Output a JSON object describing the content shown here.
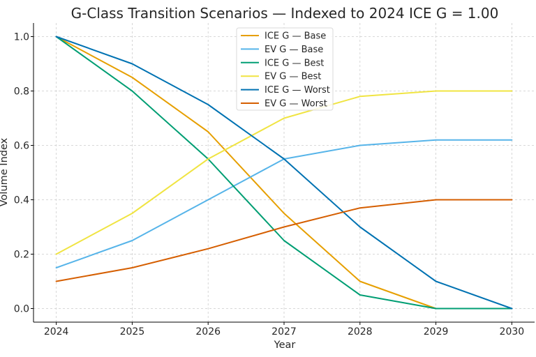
{
  "chart_data": {
    "type": "line",
    "title": "G-Class Transition Scenarios — Indexed to 2024 ICE G = 1.00",
    "xlabel": "Year",
    "ylabel": "Volume Index",
    "x": [
      2024,
      2025,
      2026,
      2027,
      2028,
      2029,
      2030
    ],
    "xlim": [
      2023.7,
      2030.3
    ],
    "ylim": [
      -0.05,
      1.05
    ],
    "yticks": [
      0.0,
      0.2,
      0.4,
      0.6,
      0.8,
      1.0
    ],
    "ytick_labels": [
      "0.0",
      "0.2",
      "0.4",
      "0.6",
      "0.8",
      "1.0"
    ],
    "xtick_labels": [
      "2024",
      "2025",
      "2026",
      "2027",
      "2028",
      "2029",
      "2030"
    ],
    "grid": true,
    "legend_position": "top-center",
    "series": [
      {
        "name": "ICE G — Base",
        "color": "#E69F00",
        "values": [
          1.0,
          0.85,
          0.65,
          0.35,
          0.1,
          0.0,
          0.0
        ]
      },
      {
        "name": "EV G — Base",
        "color": "#56B4E9",
        "values": [
          0.15,
          0.25,
          0.4,
          0.55,
          0.6,
          0.62,
          0.62
        ]
      },
      {
        "name": "ICE G — Best",
        "color": "#009E73",
        "values": [
          1.0,
          0.8,
          0.55,
          0.25,
          0.05,
          0.0,
          0.0
        ]
      },
      {
        "name": "EV G — Best",
        "color": "#F0E442",
        "values": [
          0.2,
          0.35,
          0.55,
          0.7,
          0.78,
          0.8,
          0.8
        ]
      },
      {
        "name": "ICE G — Worst",
        "color": "#0072B2",
        "values": [
          1.0,
          0.9,
          0.75,
          0.55,
          0.3,
          0.1,
          0.0
        ]
      },
      {
        "name": "EV G — Worst",
        "color": "#D55E00",
        "values": [
          0.1,
          0.15,
          0.22,
          0.3,
          0.37,
          0.4,
          0.4
        ]
      }
    ]
  }
}
